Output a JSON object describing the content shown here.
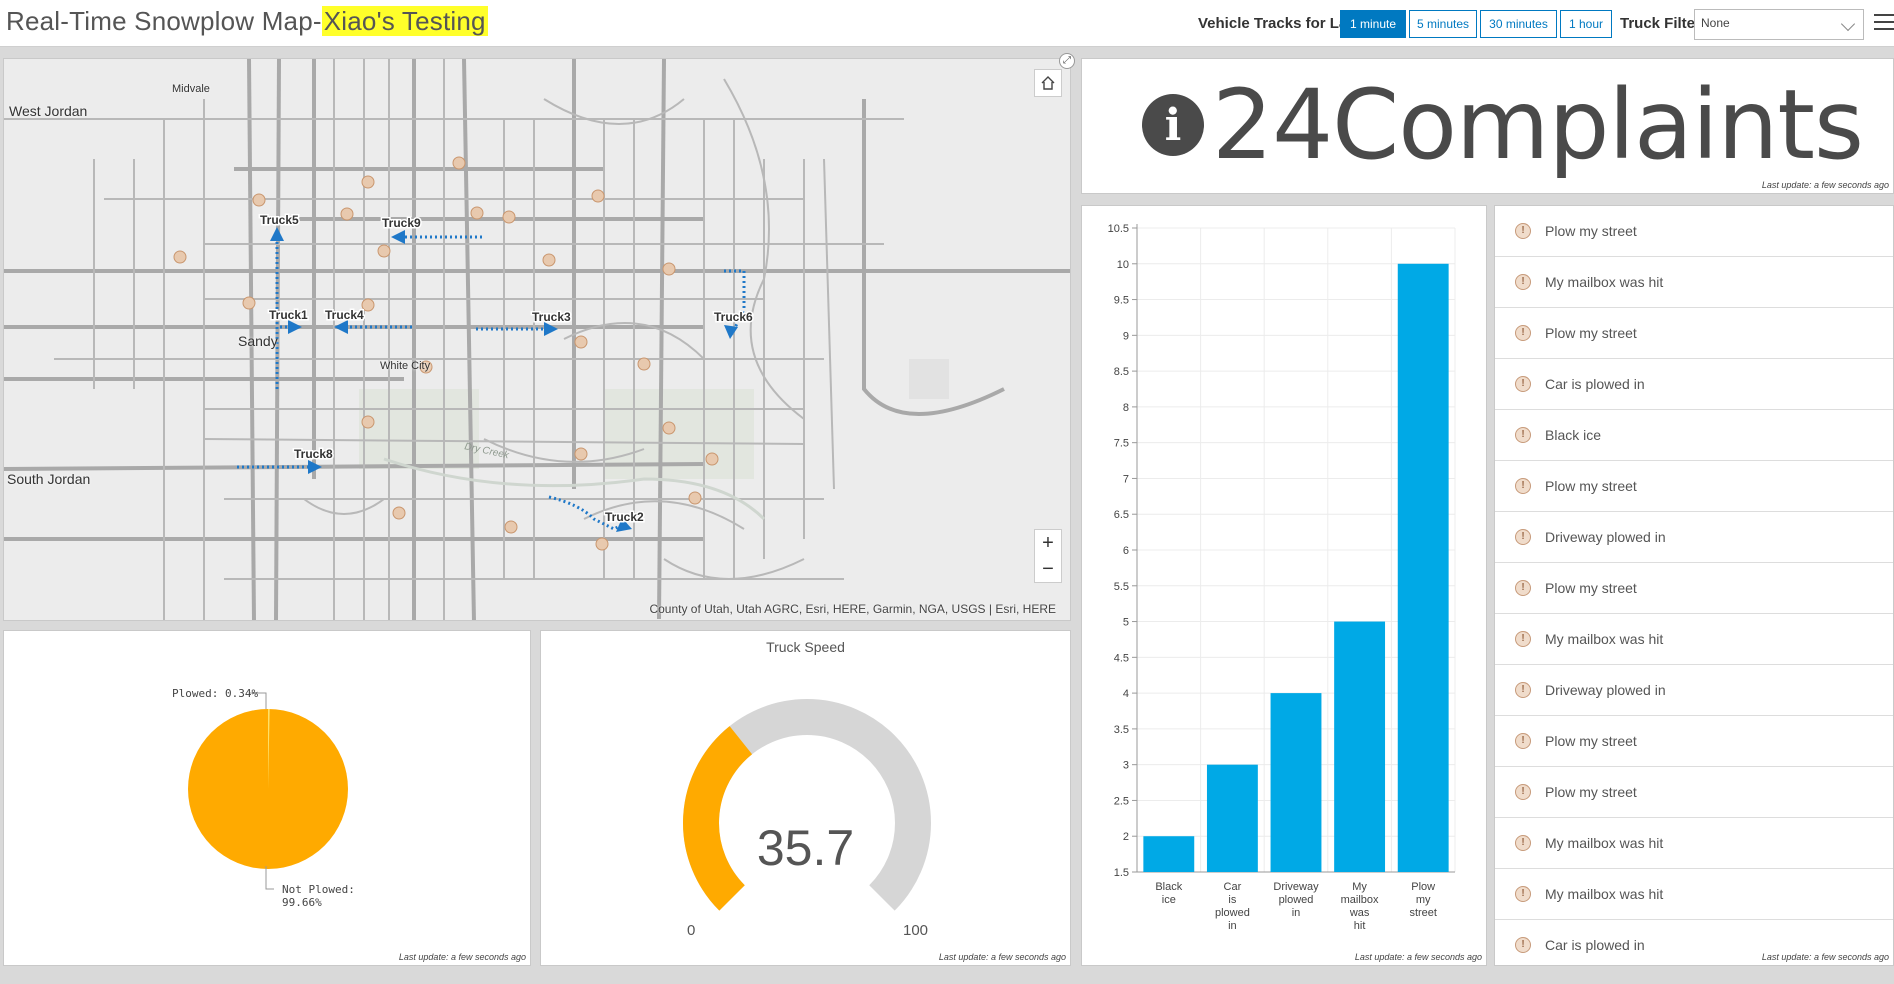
{
  "header": {
    "title_prefix": "Real-Time Snowplow Map-",
    "title_highlight": "Xiao's Testing",
    "tracks_label": "Vehicle Tracks for Last",
    "track_options": [
      "1 minute",
      "5 minutes",
      "30 minutes",
      "1 hour"
    ],
    "active_track_option": "1 minute",
    "truck_filter_label": "Truck Filter",
    "truck_filter_value": "None",
    "colors": {
      "accent": "#0079c1",
      "highlight": "#ffff2a"
    }
  },
  "map": {
    "places": {
      "west_jordan": "West Jordan",
      "midvale": "Midvale",
      "sandy": "Sandy",
      "white_city": "White City",
      "south_jordan": "South Jordan",
      "dry_creek": "Dry Creek"
    },
    "trucks": [
      "Truck5",
      "Truck9",
      "Truck1",
      "Truck4",
      "Truck3",
      "Truck6",
      "Truck8",
      "Truck2"
    ],
    "attribution": "County of Utah, Utah AGRC, Esri, HERE, Garmin, NGA, USGS | Esri, HERE",
    "zoom_in": "+",
    "zoom_out": "−",
    "icons": {
      "home": "home-icon",
      "complaint": "complaint-marker-icon",
      "expand": "expand-icon"
    },
    "colors": {
      "track": "#1f78c8",
      "road": "#a9a9a9",
      "complaint": "#e8c9ae"
    }
  },
  "indicator": {
    "value": "24",
    "label": "Complaints",
    "icon": "info-icon",
    "last_update": "Last update: a few seconds ago"
  },
  "chart_data": [
    {
      "type": "bar",
      "categories": [
        "Black ice",
        "Car is plowed in",
        "Driveway plowed in",
        "My mailbox was hit",
        "Plow my street"
      ],
      "values": [
        2,
        3,
        4,
        5,
        10
      ],
      "ylim": [
        1.5,
        10.5
      ],
      "yticks": [
        "10.5",
        "10",
        "9.5",
        "9",
        "8.5",
        "8",
        "7.5",
        "7",
        "6.5",
        "6",
        "5.5",
        "5",
        "4.5",
        "4",
        "3.5",
        "3",
        "2.5",
        "2",
        "1.5"
      ],
      "grid": true,
      "color": "#00a9e6",
      "last_update": "Last update: a few seconds ago"
    },
    {
      "type": "pie",
      "slices": [
        {
          "label": "Plowed: 0.34%",
          "value": 0.34
        },
        {
          "label": "Not Plowed: 99.66%",
          "value": 99.66
        }
      ],
      "color": "#ffaa00",
      "last_update": "Last update: a few seconds ago"
    }
  ],
  "pie": {
    "plowed_label": "Plowed: 0.34%",
    "not_plowed_label_1": "Not Plowed:",
    "not_plowed_label_2": "99.66%",
    "last_update": "Last update: a few seconds ago"
  },
  "gauge": {
    "title": "Truck Speed",
    "value": "35.7",
    "numeric_value": 35.7,
    "min": "0",
    "max": "100",
    "fill_color": "#ffaa00",
    "track_color": "#d6d6d6",
    "last_update": "Last update: a few seconds ago"
  },
  "complaints_list": {
    "items": [
      "Plow my street",
      "My mailbox was hit",
      "Plow my street",
      "Car is plowed in",
      "Black ice",
      "Plow my street",
      "Driveway plowed in",
      "Plow my street",
      "My mailbox was hit",
      "Driveway plowed in",
      "Plow my street",
      "Plow my street",
      "My mailbox was hit",
      "My mailbox was hit",
      "Car is plowed in"
    ],
    "last_update": "Last update: a few seconds ago"
  }
}
